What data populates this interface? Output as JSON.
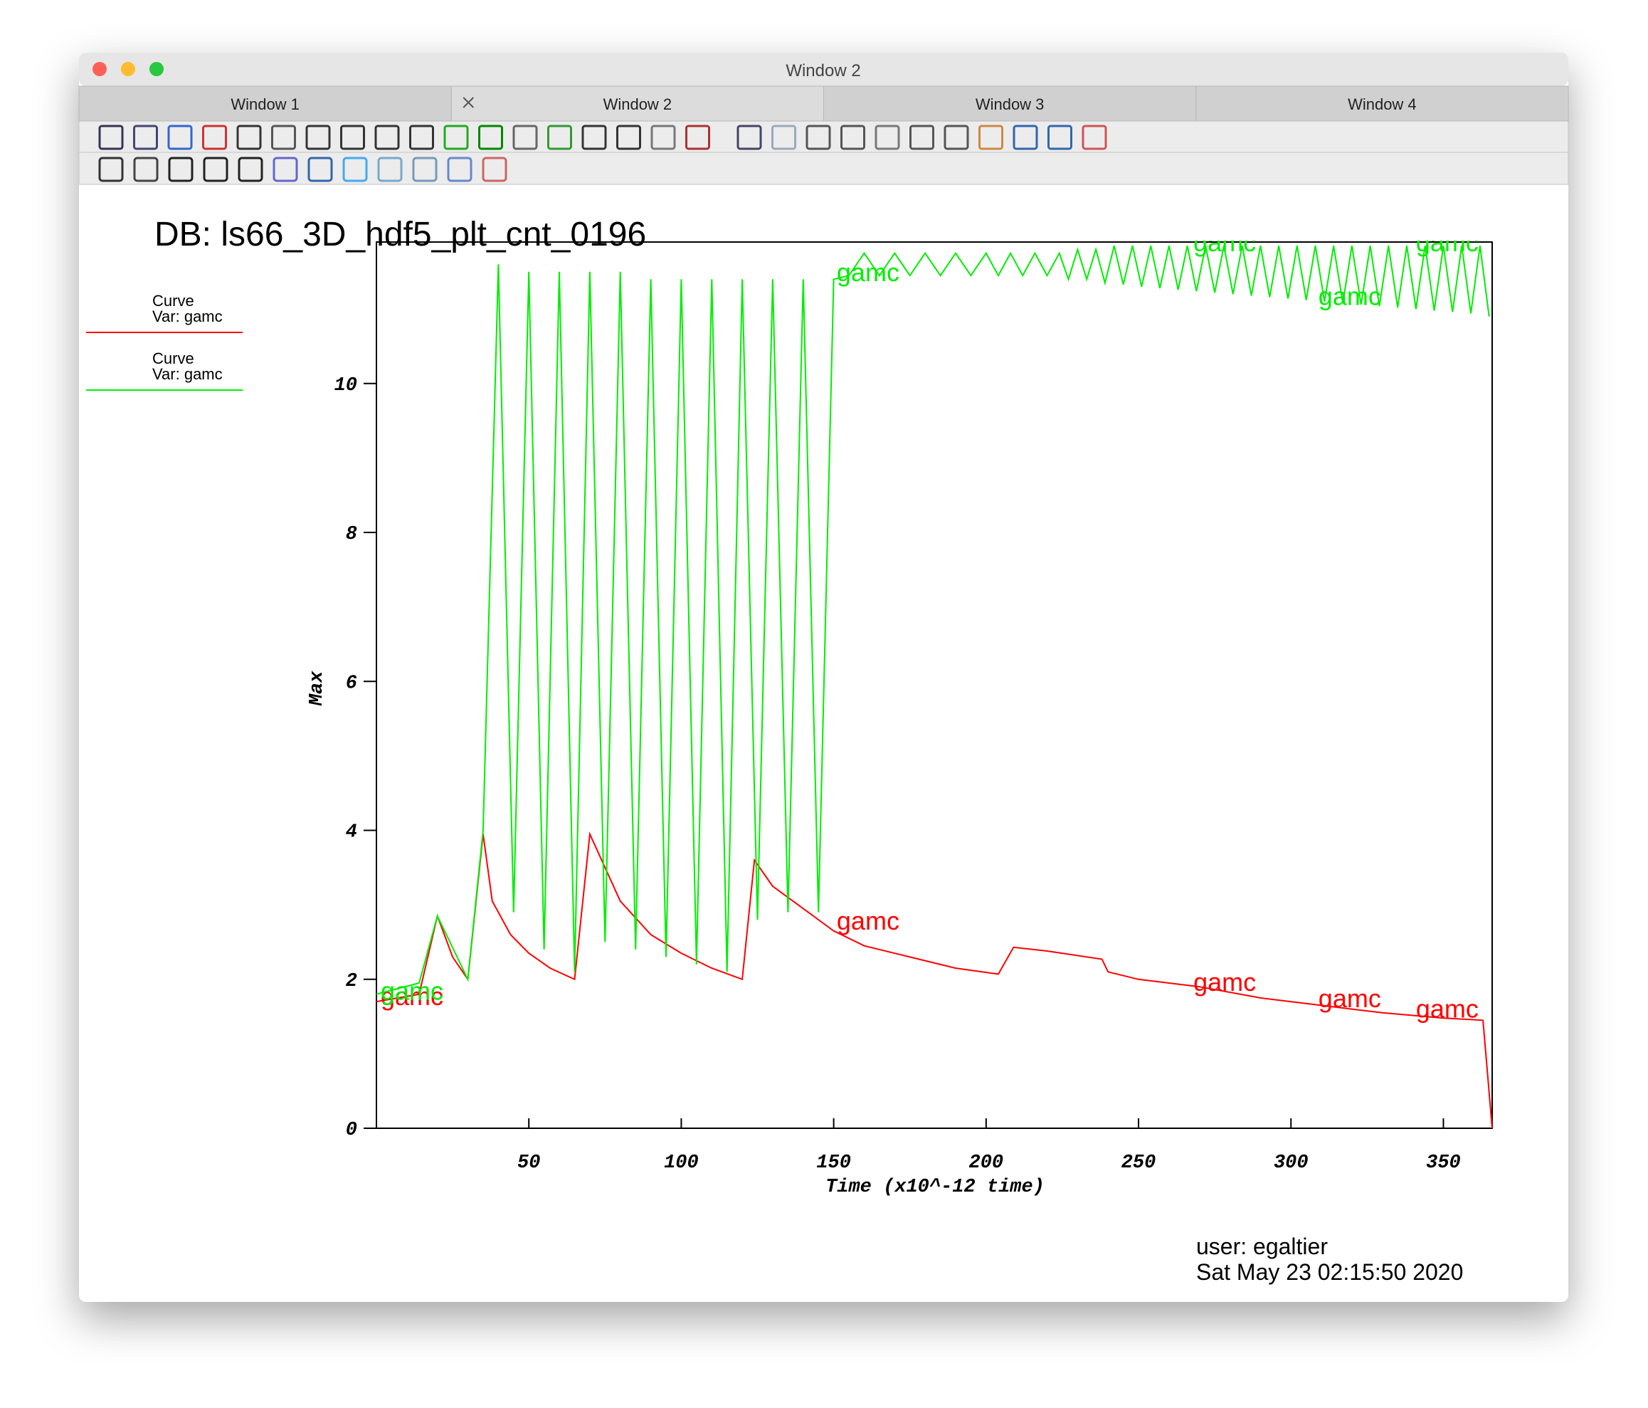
{
  "window": {
    "title": "Window 2",
    "tabs": [
      "Window 1",
      "Window 2",
      "Window 3",
      "Window 4"
    ]
  },
  "chart_data": {
    "type": "line",
    "title": "DB: ls66_3D_hdf5_plt_cnt_0196",
    "x_label": "Time (x10^-12 time)",
    "y_label": "Max",
    "xlim": [
      0,
      366
    ],
    "ylim": [
      0,
      11.9
    ],
    "xticks": [
      50,
      100,
      150,
      200,
      250,
      300,
      350
    ],
    "yticks": [
      0,
      2,
      4,
      6,
      8,
      10
    ],
    "series": [
      {
        "label": "Curve",
        "name": "Var: gamc",
        "color": "#ff0000",
        "x": [
          0,
          14,
          20,
          25,
          30,
          35,
          38,
          44,
          50,
          57,
          65,
          70,
          75,
          80,
          90,
          100,
          110,
          120,
          124,
          130,
          140,
          150,
          160,
          175,
          190,
          204,
          209,
          220,
          238,
          240,
          250,
          270,
          290,
          310,
          330,
          350,
          363,
          366
        ],
        "values": [
          1.7,
          1.8,
          2.85,
          2.3,
          2.0,
          3.95,
          3.05,
          2.6,
          2.35,
          2.15,
          2.0,
          3.95,
          3.5,
          3.05,
          2.6,
          2.35,
          2.15,
          2.0,
          3.6,
          3.25,
          2.95,
          2.65,
          2.45,
          2.3,
          2.15,
          2.07,
          2.43,
          2.38,
          2.27,
          2.1,
          2.0,
          1.9,
          1.75,
          1.65,
          1.55,
          1.48,
          1.45,
          0
        ],
        "point_labels": [
          {
            "x": 1.4,
            "y": 1.77,
            "text": "gamc"
          },
          {
            "x": 151,
            "y": 2.78,
            "text": "gamc"
          },
          {
            "x": 268,
            "y": 1.96,
            "text": "gamc"
          },
          {
            "x": 309,
            "y": 1.74,
            "text": "gamc"
          },
          {
            "x": 341,
            "y": 1.6,
            "text": "gamc"
          }
        ]
      },
      {
        "label": "Curve",
        "name": "Var: gamc",
        "color": "#00ee00",
        "x": [
          0,
          14,
          20,
          30,
          35,
          40,
          45,
          50,
          55,
          60,
          65,
          70,
          75,
          80,
          85,
          90,
          95,
          100,
          105,
          110,
          115,
          120,
          125,
          130,
          135,
          140,
          145,
          150,
          155,
          160,
          165,
          170,
          175,
          180,
          185,
          190,
          195,
          200,
          204,
          208,
          212,
          216,
          220,
          224,
          227,
          230,
          233,
          236,
          239,
          242,
          245,
          248,
          251,
          254,
          257,
          260,
          263,
          266,
          269,
          272,
          275,
          278,
          281,
          284,
          287,
          290,
          293,
          296,
          299,
          302,
          305,
          308,
          311,
          314,
          317,
          320,
          323,
          326,
          329,
          332,
          335,
          338,
          341,
          344,
          347,
          350,
          353,
          356,
          359,
          362,
          365
        ],
        "values": [
          1.8,
          1.95,
          2.85,
          2.0,
          4.0,
          11.6,
          2.9,
          11.5,
          2.4,
          11.5,
          2.1,
          11.5,
          2.5,
          11.5,
          2.4,
          11.4,
          2.3,
          11.4,
          2.2,
          11.4,
          2.1,
          11.4,
          2.8,
          11.4,
          2.9,
          11.4,
          2.9,
          11.4,
          11.45,
          11.75,
          11.45,
          11.75,
          11.45,
          11.75,
          11.45,
          11.75,
          11.45,
          11.75,
          11.45,
          11.75,
          11.45,
          11.75,
          11.45,
          11.75,
          11.4,
          11.8,
          11.4,
          11.8,
          11.35,
          11.85,
          11.33,
          11.85,
          11.3,
          11.85,
          11.28,
          11.85,
          11.26,
          11.85,
          11.24,
          11.85,
          11.22,
          11.85,
          11.2,
          11.85,
          11.18,
          11.85,
          11.16,
          11.85,
          11.14,
          11.85,
          11.12,
          11.85,
          11.1,
          11.85,
          11.08,
          11.85,
          11.06,
          11.85,
          11.04,
          11.85,
          11.02,
          11.85,
          11.0,
          11.85,
          10.98,
          11.85,
          10.96,
          11.85,
          10.94,
          11.85,
          10.9
        ],
        "point_labels": [
          {
            "x": 1.4,
            "y": 1.84,
            "text": "gamc"
          },
          {
            "x": 151,
            "y": 11.49,
            "text": "gamc"
          },
          {
            "x": 268,
            "y": 11.89,
            "text": "gamc"
          },
          {
            "x": 309,
            "y": 11.17,
            "text": "gamc"
          },
          {
            "x": 341,
            "y": 11.89,
            "text": "gamc"
          }
        ]
      }
    ]
  },
  "footer": {
    "user": "user: egaltier",
    "date": "Sat May 23 02:15:50 2020"
  }
}
